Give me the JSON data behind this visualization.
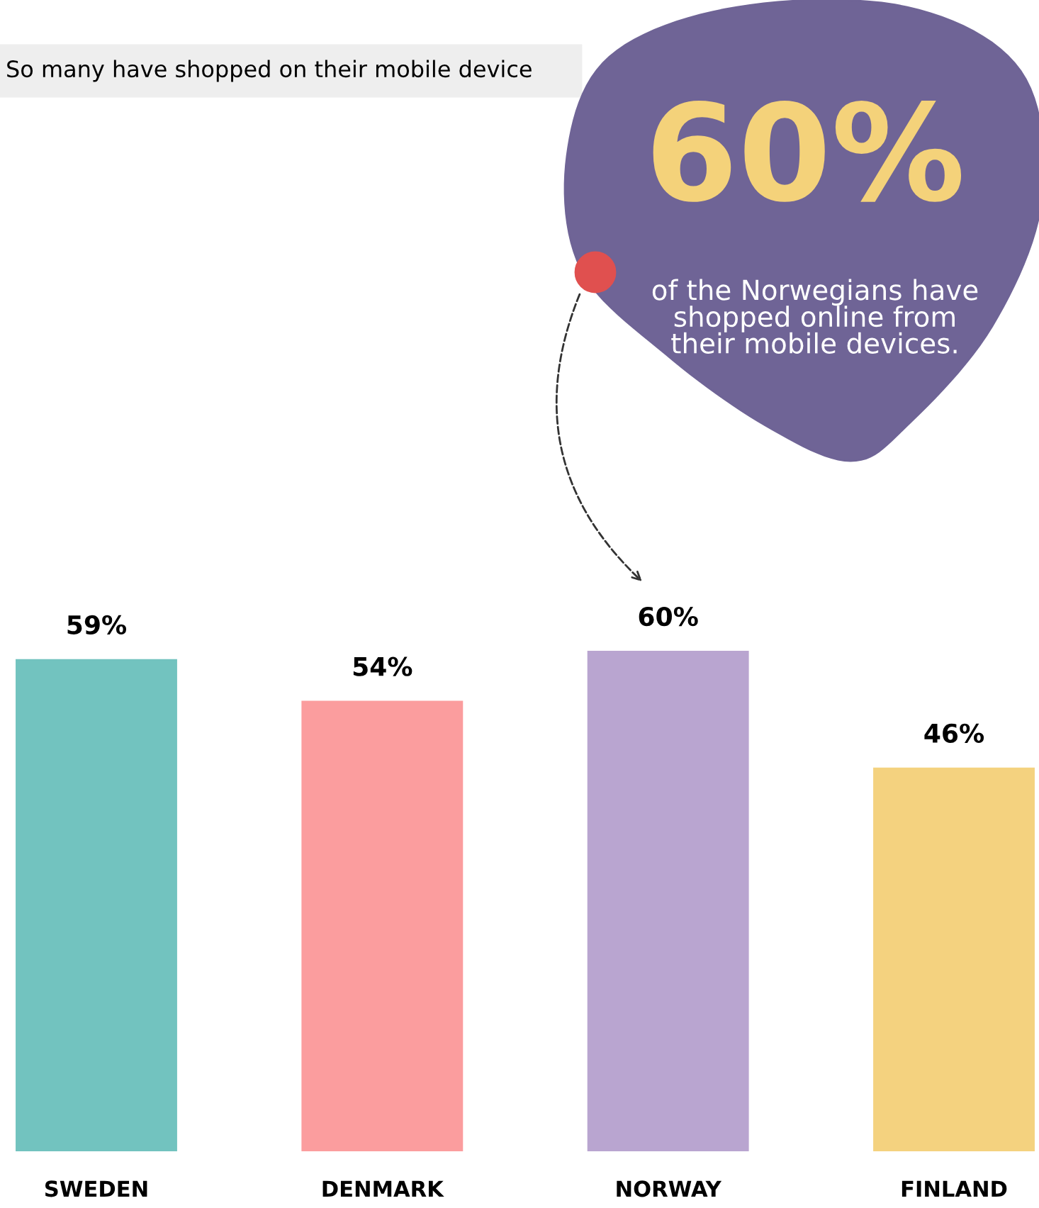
{
  "chart_data": {
    "type": "bar",
    "title": "So many have shopped on their mobile device",
    "categories": [
      "SWEDEN",
      "DENMARK",
      "NORWAY",
      "FINLAND"
    ],
    "values": [
      59,
      54,
      60,
      46
    ],
    "colors": [
      "#72c3bf",
      "#fb9d9e",
      "#b9a5d0",
      "#f4d27f"
    ],
    "value_labels": [
      "59%",
      "54%",
      "60%",
      "46%"
    ],
    "annotations": [
      "60%",
      "of the Norwegians have shopped online from their mobile devices."
    ]
  }
}
